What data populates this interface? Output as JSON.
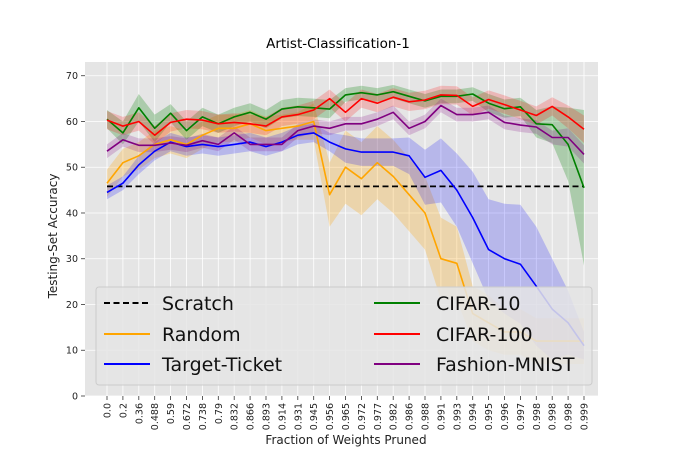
{
  "chart_data": {
    "type": "line",
    "title": "Artist-Classification-1",
    "xlabel": "Fraction of Weights Pruned",
    "ylabel": "Testing-Set Accuracy",
    "ylim": [
      0,
      73
    ],
    "yticks": [
      0,
      10,
      20,
      30,
      40,
      50,
      60,
      70
    ],
    "grid": true,
    "legend_position": "lower-center",
    "x": [
      "0.0",
      "0.2",
      "0.36",
      "0.488",
      "0.59",
      "0.672",
      "0.738",
      "0.79",
      "0.832",
      "0.866",
      "0.893",
      "0.914",
      "0.931",
      "0.945",
      "0.956",
      "0.965",
      "0.972",
      "0.977",
      "0.982",
      "0.986",
      "0.988",
      "0.991",
      "0.993",
      "0.994",
      "0.995",
      "0.996",
      "0.997",
      "0.998",
      "0.998",
      "0.998",
      "0.999"
    ],
    "series": [
      {
        "name": "Scratch",
        "color": "#000000",
        "dashed": true,
        "values": [
          45.8,
          45.8,
          45.8,
          45.8,
          45.8,
          45.8,
          45.8,
          45.8,
          45.8,
          45.8,
          45.8,
          45.8,
          45.8,
          45.8,
          45.8,
          45.8,
          45.8,
          45.8,
          45.8,
          45.8,
          45.8,
          45.8,
          45.8,
          45.8,
          45.8,
          45.8,
          45.8,
          45.8,
          45.8,
          45.8,
          45.8
        ]
      },
      {
        "name": "Random",
        "color": "#ffa500",
        "band_alpha": 0.25,
        "values": [
          46.5,
          51,
          52.5,
          55,
          56,
          55,
          57,
          58.5,
          58.5,
          59.5,
          58,
          58.5,
          59,
          60,
          44,
          50,
          47.5,
          51,
          48,
          44,
          40,
          30,
          29,
          18,
          16,
          14,
          14,
          12,
          12,
          12,
          12
        ],
        "spread": [
          3,
          3,
          3,
          3,
          3,
          3,
          3,
          3,
          3,
          3,
          3,
          3,
          3,
          4,
          7,
          8,
          8,
          8,
          8,
          8,
          8,
          9,
          8,
          6,
          6,
          5,
          5,
          5,
          5,
          5,
          5
        ]
      },
      {
        "name": "Target-Ticket",
        "color": "#0000ff",
        "band_alpha": 0.2,
        "values": [
          44.5,
          46.5,
          50.5,
          53.5,
          55.5,
          54.5,
          55,
          54.5,
          55,
          55.5,
          54.5,
          55.5,
          57,
          57.5,
          55.5,
          54,
          53.3,
          53.3,
          53.3,
          52.5,
          47.8,
          49.3,
          45,
          39,
          32,
          30,
          28.8,
          24,
          19,
          16,
          11
        ],
        "spread": [
          1.5,
          1.5,
          2,
          2,
          2,
          2,
          2,
          2,
          2,
          2,
          2,
          2,
          2,
          2,
          2,
          3,
          3,
          3,
          3,
          4,
          6,
          7,
          8,
          10,
          11,
          12,
          13,
          13,
          11,
          7,
          3
        ]
      },
      {
        "name": "CIFAR-10",
        "color": "#008000",
        "band_alpha": 0.25,
        "values": [
          60.5,
          57.5,
          63,
          58.5,
          61.8,
          58,
          61,
          59.5,
          61,
          62,
          60.5,
          62.7,
          63.2,
          63,
          62.7,
          65.8,
          66.3,
          65.8,
          66.5,
          65.5,
          64.5,
          65.5,
          65.5,
          66,
          64,
          62.8,
          63.2,
          59.5,
          59.3,
          55,
          45.5
        ],
        "spread": [
          2,
          2.5,
          3,
          3,
          2,
          2,
          2,
          2,
          2,
          2,
          2,
          2,
          2,
          2,
          2,
          1.5,
          1.5,
          1.5,
          1.5,
          1.5,
          1.5,
          1.5,
          1.5,
          1.5,
          2,
          2,
          2,
          3,
          4,
          8,
          17
        ]
      },
      {
        "name": "CIFAR-100",
        "color": "#ff0000",
        "band_alpha": 0.2,
        "values": [
          60.3,
          59,
          60,
          57,
          59.8,
          60.5,
          60.3,
          59.5,
          59.8,
          59.5,
          59,
          61,
          61.5,
          62.5,
          65,
          62,
          65,
          64,
          65.3,
          64.3,
          64.7,
          65.8,
          65.7,
          63.3,
          64.8,
          63.7,
          62.5,
          61.3,
          63.3,
          61,
          58.3
        ],
        "spread": [
          2,
          2,
          2,
          2,
          2,
          2,
          2,
          2,
          2,
          2,
          2,
          2,
          2,
          2,
          2,
          2,
          2,
          2,
          2,
          2,
          2,
          2,
          2,
          2,
          2,
          2,
          2,
          2,
          2,
          2.5,
          3
        ]
      },
      {
        "name": "Fashion-MNIST",
        "color": "#800080",
        "band_alpha": 0.2,
        "values": [
          53.5,
          56,
          54.8,
          54.8,
          55.3,
          54.8,
          55.8,
          55,
          57.5,
          55,
          55,
          55,
          58,
          59,
          58.5,
          59.5,
          59.5,
          60.5,
          62,
          58.5,
          60,
          63.5,
          61.5,
          61.5,
          62,
          59.8,
          59.2,
          58.8,
          56.5,
          56.5,
          52.8
        ],
        "spread": [
          1.5,
          1.5,
          1.5,
          1.5,
          1.5,
          1.5,
          1.5,
          1.5,
          1.5,
          1.5,
          1.5,
          1.5,
          1.5,
          1.5,
          1.5,
          1.5,
          1.5,
          1.5,
          1.5,
          1.5,
          1.5,
          1.5,
          1.5,
          1.5,
          1.5,
          1.5,
          1.5,
          1.5,
          1.5,
          2,
          2
        ]
      }
    ],
    "legend_left": [
      "Scratch",
      "Random",
      "Target-Ticket"
    ],
    "legend_right": [
      "CIFAR-10",
      "CIFAR-100",
      "Fashion-MNIST"
    ],
    "colors": {
      "panel_bg": "#e5e5e5",
      "grid": "#ffffff",
      "legend_bg": "#e5e5e5",
      "legend_border": "#cccccc"
    }
  }
}
